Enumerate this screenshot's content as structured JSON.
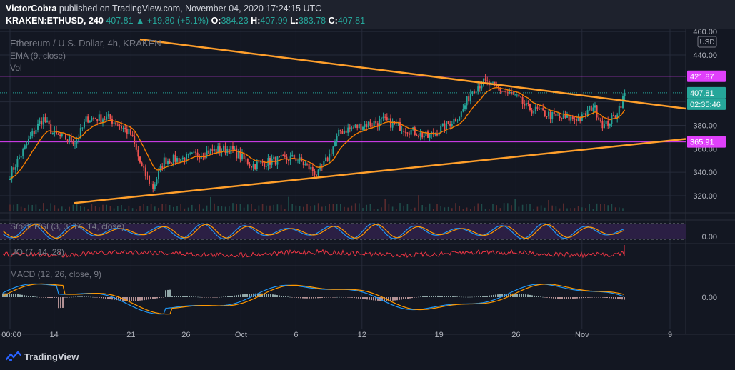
{
  "header": {
    "publisher": "VictorCobra",
    "published_text": "published on TradingView.com, November 04, 2020 17:24:15 UTC",
    "symbol": "KRAKEN:ETHUSD, 240",
    "last": "407.81",
    "change": "+19.80 (+5.1%)",
    "o_label": "O:",
    "o": "384.23",
    "h_label": "H:",
    "h": "407.99",
    "l_label": "L:",
    "l": "383.78",
    "c_label": "C:",
    "c": "407.81"
  },
  "legend": {
    "title": "Ethereum / U.S. Dollar, 4h, KRAKEN",
    "ema": "EMA (9, close)",
    "vol": "Vol"
  },
  "indicators": {
    "stoch": "Stoch RSI (3, 3, 14, 14, close)",
    "uo": "UO (7, 14, 28)",
    "macd": "MACD (12, 26, close, 9)",
    "stoch_zero": "0.00",
    "macd_zero": "0.00"
  },
  "badges": {
    "currency": "USD",
    "upper": "421.87",
    "last": "407.81",
    "countdown": "02:35:46",
    "lower": "365.91"
  },
  "colors": {
    "up": "#26a69a",
    "down": "#ef5350",
    "ema": "#f57c00",
    "trend": "#ff9f2b",
    "level": "#e040fb",
    "bg": "#131722"
  },
  "footer": {
    "brand": "TradingView"
  },
  "chart_data": {
    "type": "candlestick",
    "y_ticks": [
      "460.00",
      "440.00",
      "400.00",
      "380.00",
      "360.00",
      "340.00",
      "320.00"
    ],
    "x_ticks": [
      "00:00",
      "14",
      "21",
      "26",
      "Oct",
      "6",
      "12",
      "19",
      "26",
      "Nov",
      "9"
    ],
    "horizontal_levels": [
      421.87,
      365.91
    ],
    "last_price": 407.81,
    "trendlines": [
      {
        "from": [
          "Sep 12",
          465
        ],
        "to": [
          "Nov 9",
          396
        ]
      },
      {
        "from": [
          "Sep 12",
          310
        ],
        "to": [
          "Nov 9",
          367
        ]
      }
    ],
    "close_path": [
      [
        "Sep 10",
        338
      ],
      [
        "Sep 12",
        372
      ],
      [
        "Sep 13",
        386
      ],
      [
        "Sep 14",
        372
      ],
      [
        "Sep 16",
        366
      ],
      [
        "Sep 17",
        386
      ],
      [
        "Sep 19",
        386
      ],
      [
        "Sep 20",
        380
      ],
      [
        "Sep 21",
        372
      ],
      [
        "Sep 22",
        343
      ],
      [
        "Sep 23",
        327
      ],
      [
        "Sep 24",
        350
      ],
      [
        "Sep 26",
        352
      ],
      [
        "Sep 28",
        358
      ],
      [
        "Sep 30",
        360
      ],
      [
        "Oct 2",
        346
      ],
      [
        "Oct 4",
        350
      ],
      [
        "Oct 6",
        352
      ],
      [
        "Oct 8",
        338
      ],
      [
        "Oct 9",
        354
      ],
      [
        "Oct 10",
        375
      ],
      [
        "Oct 12",
        380
      ],
      [
        "Oct 14",
        384
      ],
      [
        "Oct 16",
        377
      ],
      [
        "Oct 18",
        370
      ],
      [
        "Oct 20",
        382
      ],
      [
        "Oct 21",
        390
      ],
      [
        "Oct 22",
        410
      ],
      [
        "Oct 23",
        417
      ],
      [
        "Oct 24",
        413
      ],
      [
        "Oct 26",
        404
      ],
      [
        "Oct 27",
        395
      ],
      [
        "Oct 28",
        392
      ],
      [
        "Oct 30",
        386
      ],
      [
        "Nov 1",
        386
      ],
      [
        "Nov 2",
        397
      ],
      [
        "Nov 3",
        379
      ],
      [
        "Nov 4",
        388
      ],
      [
        "Nov 5",
        407.81
      ]
    ]
  }
}
